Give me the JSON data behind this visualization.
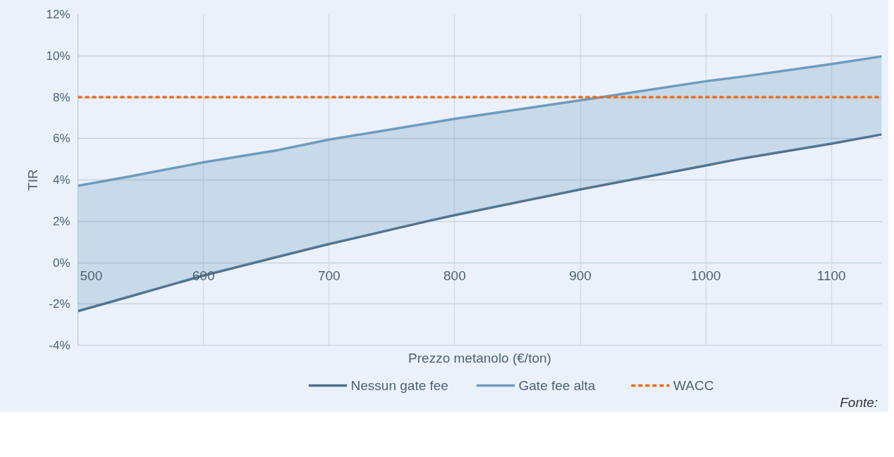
{
  "chart_data": {
    "type": "line",
    "xlabel": "Prezzo metanolo (€/ton)",
    "ylabel": "TIR",
    "x": [
      500,
      540,
      600,
      660,
      700,
      780,
      800,
      900,
      1000,
      1030,
      1100,
      1140
    ],
    "series": [
      {
        "name": "Nessun gate fee",
        "color": "#4e6f8a",
        "values": [
          -2.34,
          -1.66,
          -0.62,
          0.3,
          0.9,
          2.03,
          2.3,
          3.54,
          4.7,
          5.05,
          5.75,
          6.2
        ]
      },
      {
        "name": "Gate fee alta",
        "color": "#6f9bbd",
        "values": [
          3.72,
          4.15,
          4.85,
          5.45,
          5.95,
          6.75,
          6.95,
          7.85,
          8.77,
          9.0,
          9.6,
          9.97
        ],
        "lower": [
          -2.34,
          -1.66,
          -0.62,
          0.3,
          0.9,
          2.03,
          2.3,
          3.54,
          4.7,
          5.05,
          5.75,
          6.2
        ],
        "upper": [
          3.72,
          4.15,
          4.85,
          5.45,
          5.95,
          6.75,
          6.95,
          7.85,
          8.77,
          9.0,
          9.6,
          9.97
        ]
      },
      {
        "name": "WACC",
        "color": "#f26a10",
        "type": "line",
        "line_style": "dashed",
        "x": [
          500,
          1140
        ],
        "values": [
          8,
          8
        ]
      }
    ],
    "xlim": [
      500,
      1140
    ],
    "ylim": [
      -4,
      12
    ],
    "xticks": [
      500,
      600,
      700,
      800,
      900,
      1000,
      1100
    ],
    "yticks": [
      {
        "value": -4,
        "label": "-4%"
      },
      {
        "value": -2,
        "label": "-2%"
      },
      {
        "value": 0,
        "label": "0%"
      },
      {
        "value": 2,
        "label": "2%"
      },
      {
        "value": 4,
        "label": "4%"
      },
      {
        "value": 6,
        "label": "6%"
      },
      {
        "value": 8,
        "label": "8%"
      },
      {
        "value": 10,
        "label": "10%"
      },
      {
        "value": 12,
        "label": "12%"
      }
    ],
    "grid": true,
    "legend": "bottom",
    "line_style": "solid",
    "marker": "none",
    "annotations": [
      "Fonte:"
    ]
  }
}
